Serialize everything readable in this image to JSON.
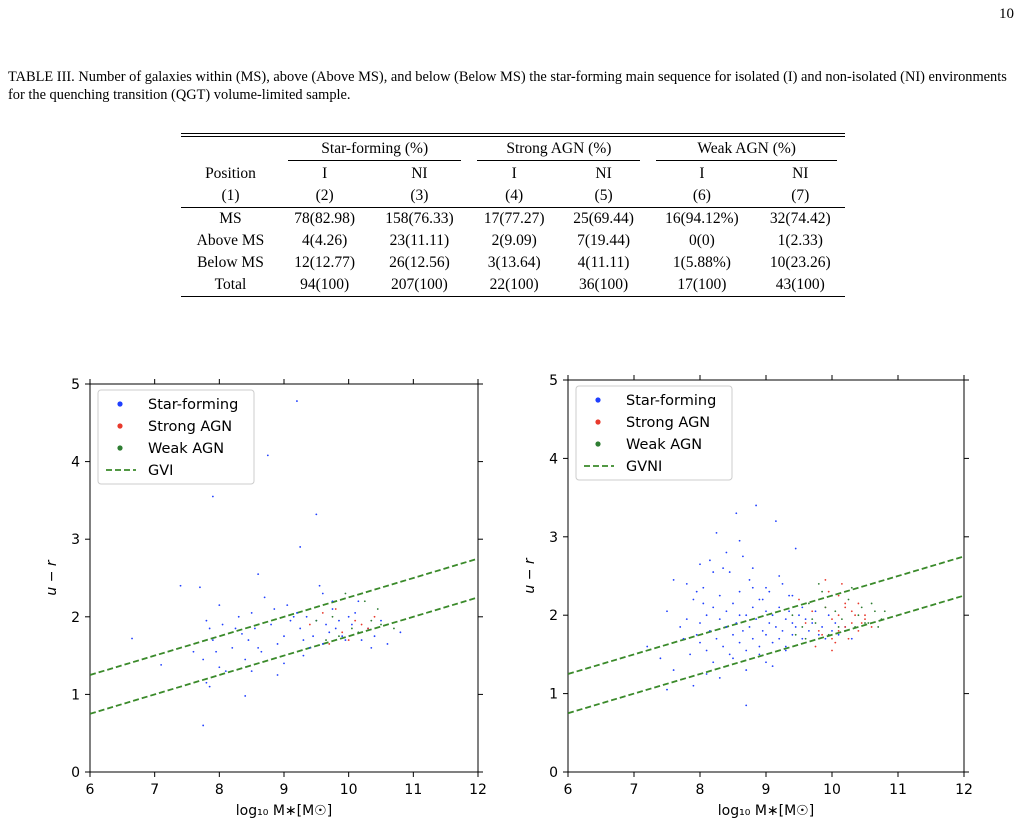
{
  "page_number": "10",
  "caption": "TABLE III. Number of galaxies within (MS), above (Above MS), and below (Below MS) the star-forming main sequence for isolated (I) and non-isolated (NI) environments for the quenching transition (QGT) volume-limited sample.",
  "table": {
    "groups": [
      "Star-forming (%)",
      "Strong AGN (%)",
      "Weak AGN (%)"
    ],
    "col_labels": [
      "Position",
      "I",
      "NI",
      "I",
      "NI",
      "I",
      "NI"
    ],
    "col_numbers": [
      "(1)",
      "(2)",
      "(3)",
      "(4)",
      "(5)",
      "(6)",
      "(7)"
    ],
    "rows": [
      {
        "label": "MS",
        "cells": [
          "78(82.98)",
          "158(76.33)",
          "17(77.27)",
          "25(69.44)",
          "16(94.12%)",
          "32(74.42)"
        ]
      },
      {
        "label": "Above MS",
        "cells": [
          "4(4.26)",
          "23(11.11)",
          "2(9.09)",
          "7(19.44)",
          "0(0)",
          "1(2.33)"
        ]
      },
      {
        "label": "Below MS",
        "cells": [
          "12(12.77)",
          "26(12.56)",
          "3(13.64)",
          "4(11.11)",
          "1(5.88%)",
          "10(23.26)"
        ]
      },
      {
        "label": "Total",
        "cells": [
          "94(100)",
          "207(100)",
          "22(100)",
          "36(100)",
          "17(100)",
          "43(100)"
        ]
      }
    ]
  },
  "chart_data": [
    {
      "type": "scatter",
      "xlabel": "log₁₀ M∗[M☉]",
      "ylabel": "u − r",
      "xlim": [
        6,
        12
      ],
      "ylim": [
        0,
        5
      ],
      "xticks": [
        "6",
        "7",
        "8",
        "9",
        "10",
        "11",
        "12"
      ],
      "yticks": [
        "0",
        "1",
        "2",
        "3",
        "4",
        "5"
      ],
      "legend_position": "top-left",
      "colors": {
        "sf": "#1f3fff",
        "strong": "#e8392c",
        "weak": "#2e7d32",
        "line": "#3a8a2a"
      },
      "legend": [
        "Star-forming",
        "Strong AGN",
        "Weak AGN",
        "GVI"
      ],
      "lines": [
        {
          "name": "GVI",
          "x": [
            6,
            12
          ],
          "y": [
            1.25,
            2.75
          ]
        },
        {
          "name": "GVI",
          "x": [
            6,
            12
          ],
          "y": [
            0.75,
            2.25
          ]
        }
      ],
      "series": [
        {
          "name": "Star-forming",
          "x": [
            6.65,
            7.1,
            7.4,
            7.6,
            7.7,
            7.75,
            7.8,
            7.8,
            7.85,
            7.9,
            7.95,
            8.0,
            8.05,
            8.1,
            8.2,
            8.25,
            8.3,
            8.35,
            8.4,
            8.45,
            8.5,
            8.55,
            8.6,
            8.65,
            8.7,
            8.8,
            8.85,
            8.9,
            9.0,
            9.05,
            9.1,
            9.2,
            9.25,
            9.3,
            9.35,
            9.4,
            9.45,
            9.5,
            9.55,
            9.6,
            9.65,
            9.7,
            9.75,
            9.8,
            9.85,
            9.9,
            9.95,
            10.0,
            10.05,
            10.1,
            10.2,
            10.3,
            10.4,
            10.6,
            10.8,
            7.9,
            8.75,
            9.25,
            9.2,
            9.5,
            9.75,
            8.0,
            7.75,
            7.85,
            8.5,
            8.9,
            9.6,
            9.0,
            9.3,
            10.15,
            10.5,
            9.15,
            8.6,
            8.4,
            10.35
          ],
          "y": [
            1.72,
            1.38,
            2.4,
            1.55,
            2.38,
            1.45,
            1.95,
            1.15,
            1.85,
            1.7,
            1.55,
            1.35,
            1.9,
            1.3,
            1.6,
            1.85,
            2.0,
            1.78,
            1.45,
            1.7,
            2.05,
            1.85,
            1.6,
            1.55,
            2.25,
            1.9,
            2.1,
            1.65,
            1.75,
            2.15,
            1.95,
            2.05,
            1.85,
            1.7,
            2.0,
            1.6,
            1.75,
            1.95,
            2.4,
            1.65,
            1.9,
            1.8,
            2.1,
            1.85,
            1.95,
            1.75,
            1.7,
            2.0,
            1.9,
            2.05,
            1.7,
            1.85,
            1.75,
            1.65,
            1.8,
            3.55,
            4.08,
            2.9,
            4.78,
            3.32,
            2.2,
            2.15,
            0.6,
            1.1,
            1.3,
            1.25,
            2.3,
            1.4,
            1.5,
            2.2,
            1.95,
            2.0,
            2.55,
            0.98,
            1.6
          ]
        },
        {
          "name": "Strong AGN",
          "x": [
            9.4,
            9.9,
            10.1,
            10.3,
            9.6,
            10.0,
            9.8,
            10.2,
            9.7,
            10.4
          ],
          "y": [
            1.9,
            1.8,
            1.95,
            1.85,
            2.05,
            1.7,
            2.1,
            1.9,
            1.65,
            2.0
          ]
        },
        {
          "name": "Weak AGN",
          "x": [
            9.5,
            9.85,
            10.05,
            10.25,
            10.5,
            9.75,
            10.15,
            9.95,
            10.35,
            9.65,
            10.7,
            10.45
          ],
          "y": [
            1.95,
            1.75,
            1.85,
            2.2,
            1.9,
            2.0,
            1.8,
            2.3,
            1.95,
            1.7,
            1.85,
            2.1
          ]
        }
      ]
    },
    {
      "type": "scatter",
      "xlabel": "log₁₀ M∗[M☉]",
      "ylabel": "u − r",
      "xlim": [
        6,
        12
      ],
      "ylim": [
        0,
        5
      ],
      "xticks": [
        "6",
        "7",
        "8",
        "9",
        "10",
        "11",
        "12"
      ],
      "yticks": [
        "0",
        "1",
        "2",
        "3",
        "4",
        "5"
      ],
      "legend_position": "top-left",
      "colors": {
        "sf": "#1f3fff",
        "strong": "#e8392c",
        "weak": "#2e7d32",
        "line": "#3a8a2a"
      },
      "legend": [
        "Star-forming",
        "Strong AGN",
        "Weak AGN",
        "GVNI"
      ],
      "lines": [
        {
          "name": "GVNI",
          "x": [
            6,
            12
          ],
          "y": [
            1.25,
            2.75
          ]
        },
        {
          "name": "GVNI",
          "x": [
            6,
            12
          ],
          "y": [
            0.75,
            2.25
          ]
        }
      ],
      "series": [
        {
          "name": "Star-forming",
          "x": [
            7.2,
            7.4,
            7.5,
            7.6,
            7.7,
            7.75,
            7.8,
            7.85,
            7.9,
            7.95,
            8.0,
            8.0,
            8.05,
            8.1,
            8.1,
            8.15,
            8.2,
            8.2,
            8.25,
            8.3,
            8.3,
            8.35,
            8.4,
            8.4,
            8.45,
            8.5,
            8.5,
            8.55,
            8.6,
            8.6,
            8.65,
            8.7,
            8.7,
            8.75,
            8.8,
            8.8,
            8.85,
            8.9,
            8.9,
            8.95,
            9.0,
            9.0,
            9.05,
            9.1,
            9.1,
            9.15,
            9.2,
            9.2,
            9.25,
            9.3,
            9.3,
            9.35,
            9.4,
            9.4,
            9.45,
            9.5,
            9.55,
            9.6,
            9.65,
            9.7,
            9.75,
            9.8,
            9.85,
            9.9,
            9.95,
            10.0,
            10.05,
            10.1,
            10.2,
            10.3,
            7.6,
            7.8,
            8.0,
            8.2,
            8.4,
            8.6,
            8.8,
            9.0,
            9.2,
            9.4,
            7.9,
            8.3,
            8.7,
            9.1,
            8.5,
            8.9,
            9.3,
            8.1,
            8.7,
            9.0,
            7.5,
            8.25,
            8.55,
            8.85,
            9.15,
            9.45,
            8.65,
            8.35,
            8.75,
            8.95,
            9.05,
            8.45,
            8.15,
            9.25,
            9.35,
            8.05,
            7.95,
            9.55,
            8.8,
            8.6
          ],
          "y": [
            1.6,
            1.45,
            2.05,
            1.3,
            1.85,
            1.7,
            1.95,
            1.5,
            2.2,
            1.75,
            1.65,
            1.9,
            2.35,
            1.55,
            2.0,
            1.8,
            2.1,
            1.4,
            1.7,
            1.95,
            2.25,
            1.6,
            1.85,
            2.05,
            1.5,
            1.75,
            2.15,
            1.9,
            1.65,
            2.3,
            1.8,
            2.0,
            1.55,
            1.85,
            2.1,
            1.7,
            1.95,
            1.6,
            2.2,
            1.8,
            2.05,
            1.75,
            1.9,
            1.65,
            2.0,
            1.85,
            1.7,
            2.1,
            1.8,
            1.95,
            1.6,
            2.05,
            1.75,
            1.9,
            1.85,
            2.0,
            1.7,
            1.95,
            1.8,
            1.9,
            2.05,
            1.75,
            1.85,
            1.7,
            2.0,
            1.8,
            1.9,
            1.75,
            1.85,
            1.7,
            2.45,
            2.4,
            2.65,
            2.55,
            2.8,
            2.95,
            2.6,
            2.35,
            2.5,
            2.25,
            1.1,
            1.2,
            1.3,
            1.35,
            1.45,
            1.5,
            1.55,
            1.25,
            0.85,
            1.4,
            1.05,
            3.05,
            3.3,
            3.4,
            3.2,
            2.85,
            2.75,
            2.6,
            2.45,
            2.2,
            2.3,
            2.55,
            2.7,
            2.4,
            2.25,
            2.15,
            2.3,
            2.1,
            2.35,
            2.0
          ]
        },
        {
          "name": "Strong AGN",
          "x": [
            9.5,
            9.6,
            9.7,
            9.8,
            9.9,
            10.0,
            10.0,
            10.1,
            10.1,
            10.2,
            10.2,
            10.3,
            10.3,
            10.4,
            10.4,
            10.5,
            10.5,
            10.6,
            9.75,
            9.85,
            9.95,
            10.05,
            10.15,
            10.25,
            10.35,
            10.45,
            9.9,
            10.0,
            10.1,
            10.2
          ],
          "y": [
            2.2,
            1.9,
            2.05,
            1.8,
            2.1,
            1.95,
            1.7,
            2.0,
            2.25,
            1.85,
            2.1,
            1.9,
            2.05,
            1.8,
            2.15,
            1.95,
            2.0,
            1.85,
            1.6,
            1.75,
            2.3,
            1.65,
            2.4,
            1.7,
            2.0,
            1.9,
            2.45,
            1.55,
            1.8,
            2.15
          ]
        },
        {
          "name": "Weak AGN",
          "x": [
            9.4,
            9.55,
            9.65,
            9.75,
            9.85,
            9.95,
            10.05,
            10.15,
            10.25,
            10.35,
            10.45,
            10.55,
            10.65,
            10.75,
            9.6,
            9.8,
            10.0,
            10.2,
            10.4,
            10.6,
            9.7,
            9.9,
            10.1,
            10.3,
            10.5,
            10.8,
            9.45,
            10.7
          ],
          "y": [
            2.0,
            1.85,
            2.15,
            1.9,
            2.3,
            1.75,
            2.05,
            1.95,
            2.2,
            1.85,
            2.1,
            1.9,
            2.05,
            1.95,
            1.7,
            2.4,
            2.25,
            1.8,
            2.0,
            2.15,
            1.95,
            2.1,
            1.85,
            2.35,
            1.9,
            2.05,
            1.75,
            1.85
          ]
        }
      ]
    }
  ]
}
